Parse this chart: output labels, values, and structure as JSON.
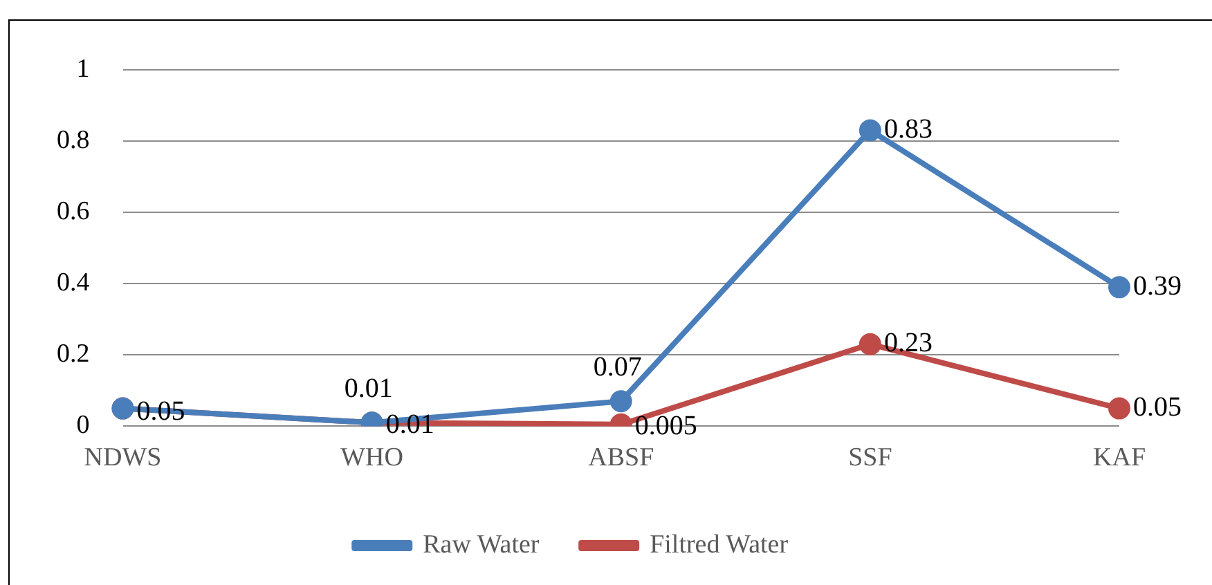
{
  "chart_data": {
    "type": "line",
    "categories": [
      "NDWS",
      "WHO",
      "ABSF",
      "SSF",
      "KAF"
    ],
    "series": [
      {
        "name": "Raw Water",
        "color": "#4a7ebb",
        "values": [
          0.05,
          0.01,
          0.07,
          0.83,
          0.39
        ],
        "value_labels": [
          null,
          "0.01",
          "0.07",
          "0.83",
          "0.39"
        ]
      },
      {
        "name": "Filtred Water",
        "color": "#be4b48",
        "values": [
          0.05,
          0.01,
          0.005,
          0.23,
          0.05
        ],
        "value_labels": [
          "0.05",
          "0.01",
          "0.005",
          "0.23",
          "0.05"
        ]
      }
    ],
    "ylim": [
      0,
      1
    ],
    "yticks": [
      0,
      0.2,
      0.4,
      0.6,
      0.8,
      1
    ],
    "grid": "y",
    "legend": "bottom",
    "marker": "circle",
    "line_style": "solid"
  }
}
